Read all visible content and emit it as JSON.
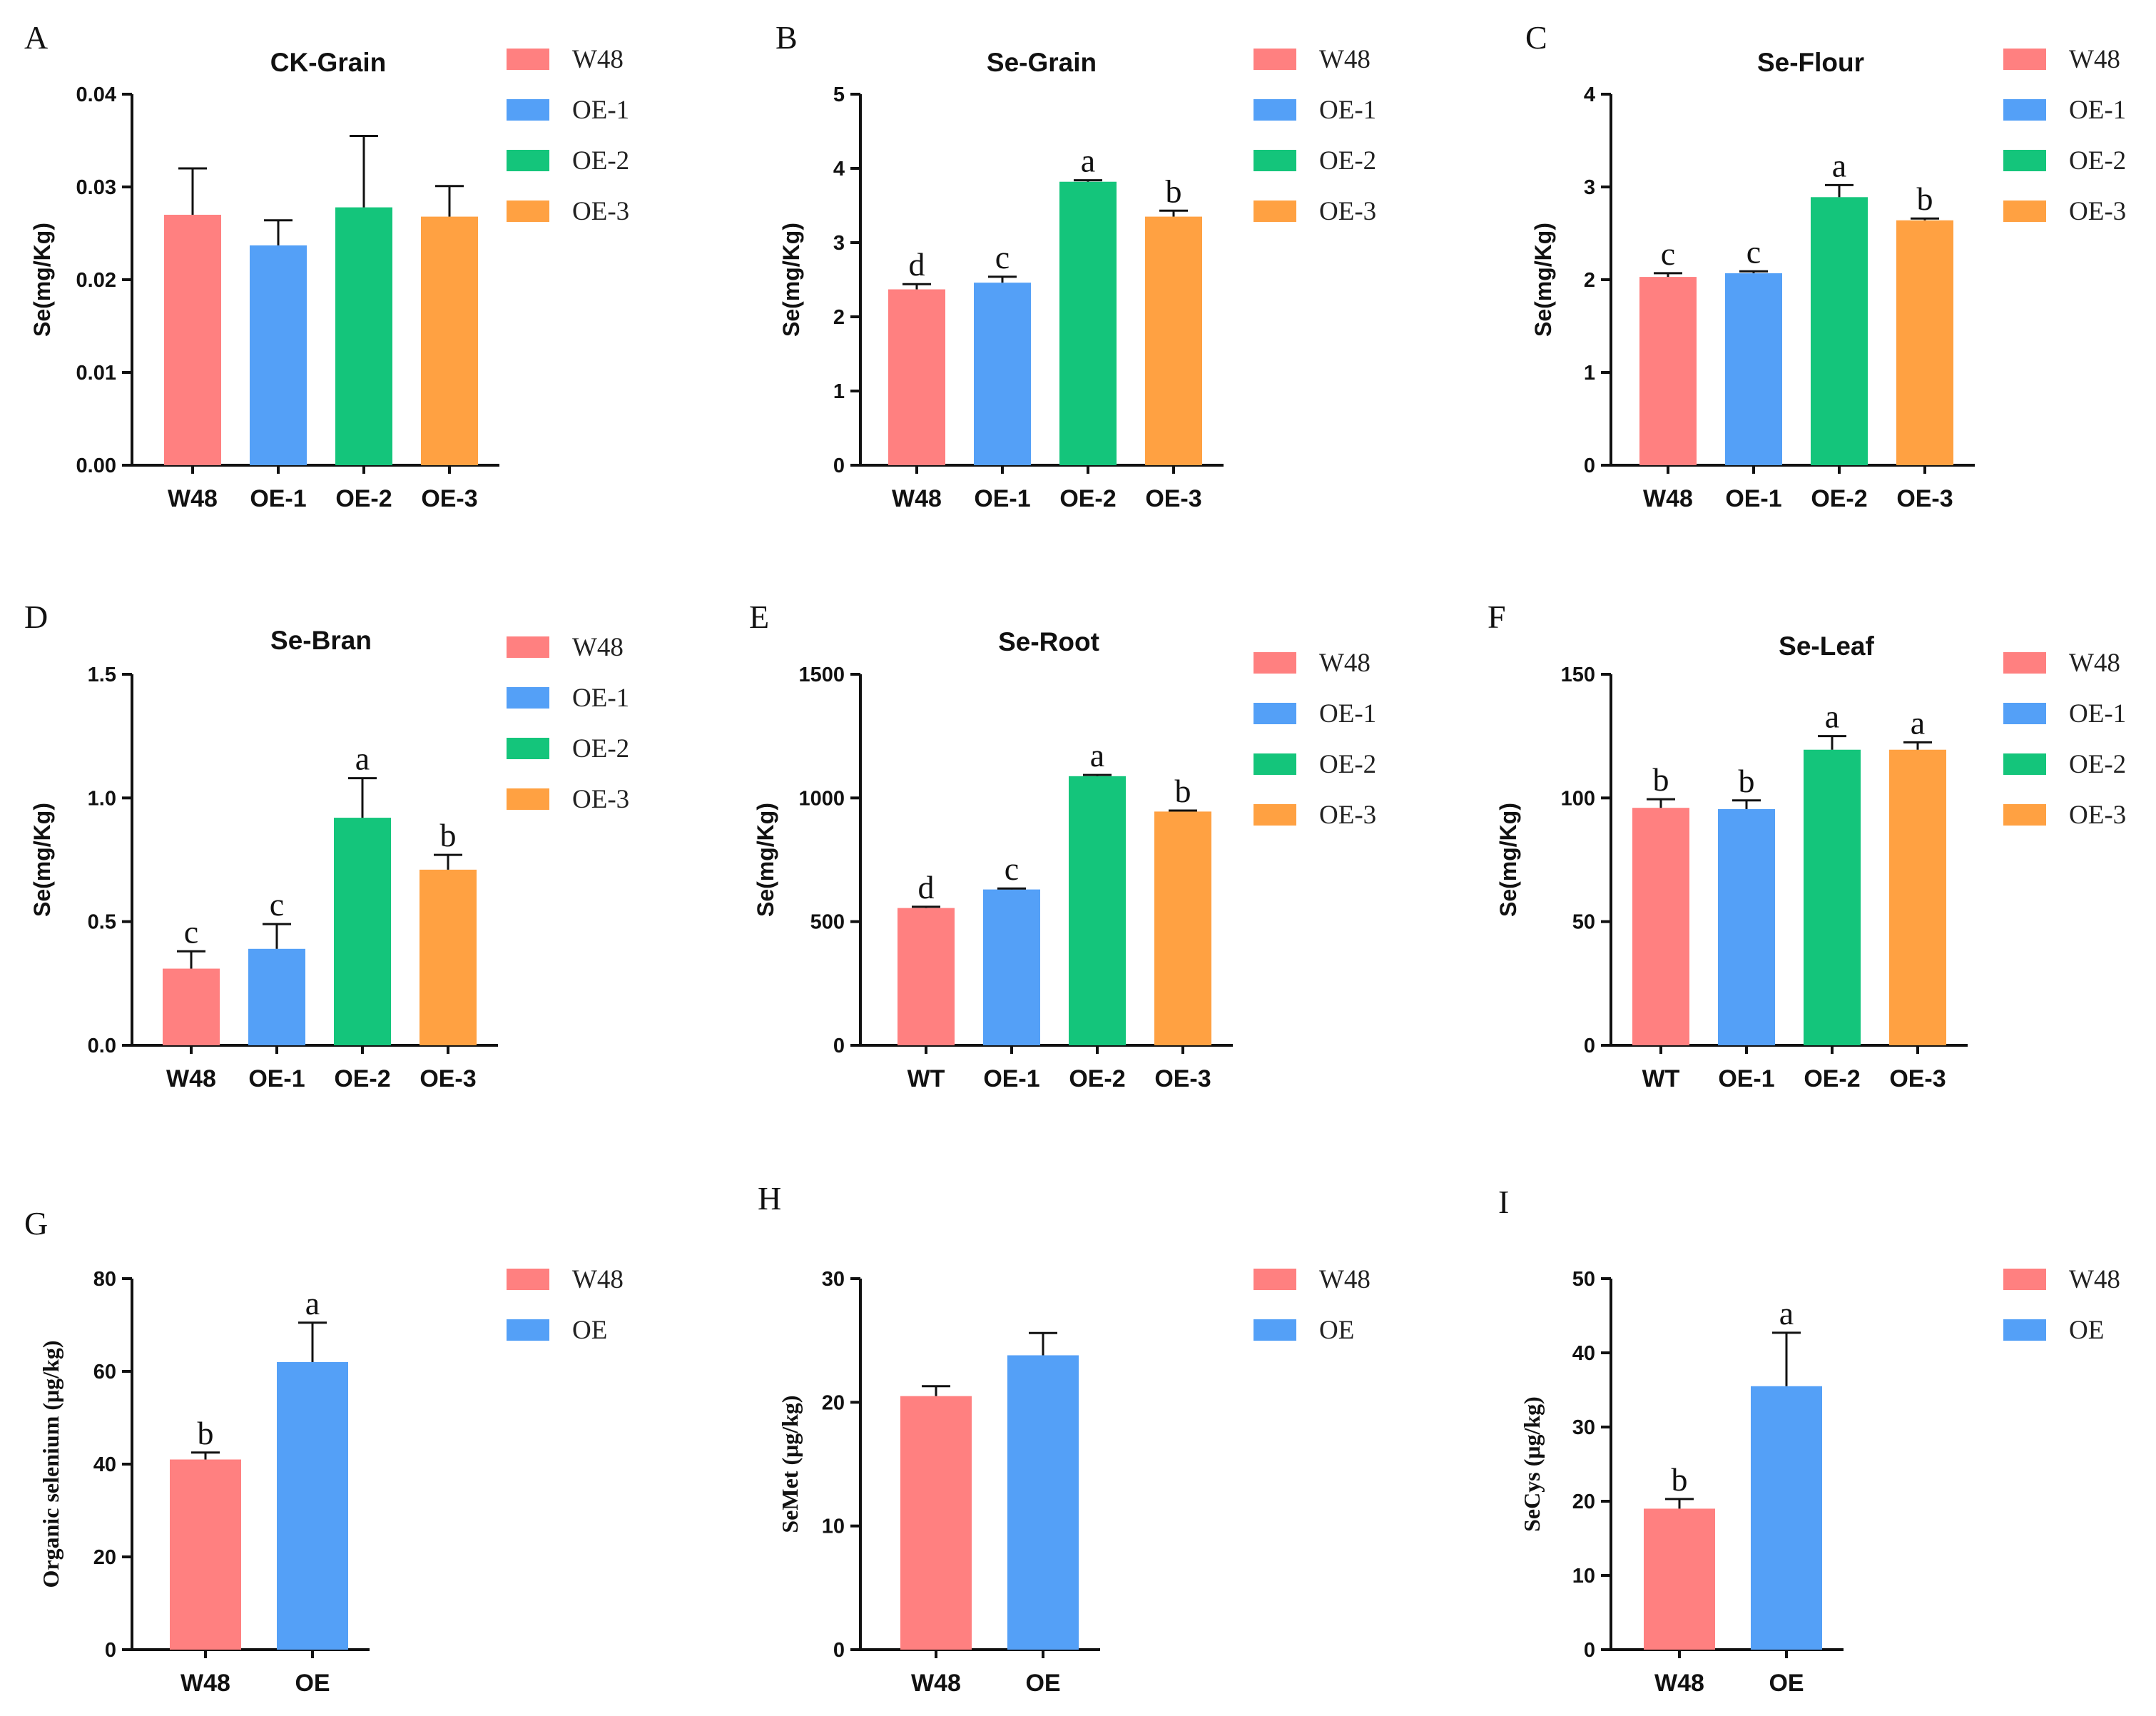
{
  "colors": {
    "W48": "#ff8080",
    "OE-1": "#54a0f7",
    "OE-2": "#14c57b",
    "OE-3": "#ffa142",
    "OE": "#54a0f7",
    "WT": "#ff8080"
  },
  "chart_data": [
    {
      "id": "A",
      "type": "bar",
      "title": "CK-Grain",
      "ylabel": "Se(mg/Kg)",
      "ylim": [
        0,
        0.04
      ],
      "yticks": [
        "0.00",
        "0.01",
        "0.02",
        "0.03",
        "0.04"
      ],
      "categories": [
        "W48",
        "OE-1",
        "OE-2",
        "OE-3"
      ],
      "values": [
        0.027,
        0.0237,
        0.0278,
        0.0268
      ],
      "errors": [
        0.005,
        0.0027,
        0.0077,
        0.0033
      ],
      "letters": [
        "",
        "",
        "",
        ""
      ],
      "legend": [
        "W48",
        "OE-1",
        "OE-2",
        "OE-3"
      ]
    },
    {
      "id": "B",
      "type": "bar",
      "title": "Se-Grain",
      "ylabel": "Se(mg/Kg)",
      "ylim": [
        0,
        5
      ],
      "yticks": [
        "0",
        "1",
        "2",
        "3",
        "4",
        "5"
      ],
      "categories": [
        "W48",
        "OE-1",
        "OE-2",
        "OE-3"
      ],
      "values": [
        2.37,
        2.46,
        3.82,
        3.35
      ],
      "errors": [
        0.07,
        0.08,
        0.02,
        0.08
      ],
      "letters": [
        "d",
        "c",
        "a",
        "b"
      ],
      "legend": [
        "W48",
        "OE-1",
        "OE-2",
        "OE-3"
      ]
    },
    {
      "id": "C",
      "type": "bar",
      "title": "Se-Flour",
      "ylabel": "Se(mg/Kg)",
      "ylim": [
        0,
        4
      ],
      "yticks": [
        "0",
        "1",
        "2",
        "3",
        "4"
      ],
      "categories": [
        "W48",
        "OE-1",
        "OE-2",
        "OE-3"
      ],
      "values": [
        2.03,
        2.07,
        2.89,
        2.64
      ],
      "errors": [
        0.04,
        0.02,
        0.13,
        0.02
      ],
      "letters": [
        "c",
        "c",
        "a",
        "b"
      ],
      "legend": [
        "W48",
        "OE-1",
        "OE-2",
        "OE-3"
      ]
    },
    {
      "id": "D",
      "type": "bar",
      "title": "Se-Bran",
      "ylabel": "Se(mg/Kg)",
      "ylim": [
        0,
        1.5
      ],
      "yticks": [
        "0.0",
        "0.5",
        "1.0",
        "1.5"
      ],
      "categories": [
        "W48",
        "OE-1",
        "OE-2",
        "OE-3"
      ],
      "values": [
        0.31,
        0.39,
        0.92,
        0.71
      ],
      "errors": [
        0.07,
        0.1,
        0.16,
        0.06
      ],
      "letters": [
        "c",
        "c",
        "a",
        "b"
      ],
      "legend": [
        "W48",
        "OE-1",
        "OE-2",
        "OE-3"
      ]
    },
    {
      "id": "E",
      "type": "bar",
      "title": "Se-Root",
      "ylabel": "Se(mg/Kg)",
      "ylim": [
        0,
        1500
      ],
      "yticks": [
        "0",
        "500",
        "1000",
        "1500"
      ],
      "categories": [
        "WT",
        "OE-1",
        "OE-2",
        "OE-3"
      ],
      "values": [
        555,
        630,
        1088,
        945
      ],
      "errors": [
        5,
        4,
        5,
        4
      ],
      "letters": [
        "d",
        "c",
        "a",
        "b"
      ],
      "legend": [
        "W48",
        "OE-1",
        "OE-2",
        "OE-3"
      ]
    },
    {
      "id": "F",
      "type": "bar",
      "title": "Se-Leaf",
      "ylabel": "Se(mg/Kg)",
      "ylim": [
        0,
        150
      ],
      "yticks": [
        "0",
        "50",
        "100",
        "150"
      ],
      "categories": [
        "WT",
        "OE-1",
        "OE-2",
        "OE-3"
      ],
      "values": [
        96,
        95.5,
        119.5,
        119.5
      ],
      "errors": [
        3.5,
        3.5,
        5.5,
        3
      ],
      "letters": [
        "b",
        "b",
        "a",
        "a"
      ],
      "legend": [
        "W48",
        "OE-1",
        "OE-2",
        "OE-3"
      ]
    },
    {
      "id": "G",
      "type": "bar",
      "title": "",
      "ylabel": "Organic selenium (μg/kg)",
      "ylim": [
        0,
        80
      ],
      "yticks": [
        "0",
        "20",
        "40",
        "60",
        "80"
      ],
      "categories": [
        "W48",
        "OE"
      ],
      "values": [
        41,
        62
      ],
      "errors": [
        1.5,
        8.5
      ],
      "letters": [
        "b",
        "a"
      ],
      "legend": [
        "W48",
        "OE"
      ]
    },
    {
      "id": "H",
      "type": "bar",
      "title": "",
      "ylabel": "SeMet (μg/kg)",
      "ylim": [
        0,
        30
      ],
      "yticks": [
        "0",
        "10",
        "20",
        "30"
      ],
      "categories": [
        "W48",
        "OE"
      ],
      "values": [
        20.5,
        23.8
      ],
      "errors": [
        0.8,
        1.8
      ],
      "letters": [
        "",
        ""
      ],
      "legend": [
        "W48",
        "OE"
      ]
    },
    {
      "id": "I",
      "type": "bar",
      "title": "",
      "ylabel": "SeCys (μg/kg)",
      "ylim": [
        0,
        50
      ],
      "yticks": [
        "0",
        "10",
        "20",
        "30",
        "40",
        "50"
      ],
      "categories": [
        "W48",
        "OE"
      ],
      "values": [
        19,
        35.5
      ],
      "errors": [
        1.3,
        7.2
      ],
      "letters": [
        "b",
        "a"
      ],
      "legend": [
        "W48",
        "OE"
      ]
    }
  ]
}
